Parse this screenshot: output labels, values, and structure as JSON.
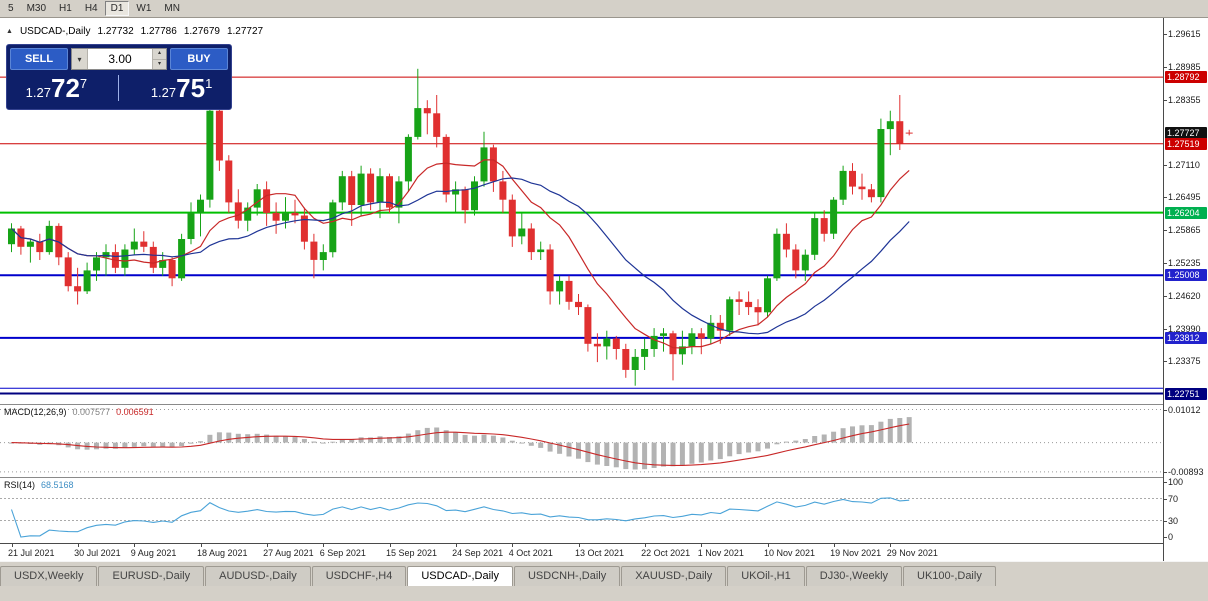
{
  "toolbar": {
    "timeframes": [
      "5",
      "M30",
      "H1",
      "H4",
      "D1",
      "W1",
      "MN"
    ],
    "active_timeframe": "D1"
  },
  "chart_header": {
    "collapse_icon": "▲",
    "symbol_period": "USDCAD-,Daily",
    "open": "1.27732",
    "high": "1.27786",
    "low": "1.27679",
    "close": "1.27727"
  },
  "trade_panel": {
    "sell_label": "SELL",
    "buy_label": "BUY",
    "volume": "3.00",
    "bid": {
      "prefix": "1.27",
      "big": "72",
      "sup": "7"
    },
    "ask": {
      "prefix": "1.27",
      "big": "75",
      "sup": "1"
    }
  },
  "price_axis": {
    "ticks": [
      "1.29615",
      "1.28985",
      "1.28355",
      "1.27110",
      "1.26495",
      "1.25865",
      "1.25235",
      "1.24620",
      "1.23990",
      "1.23375"
    ],
    "badges": [
      {
        "text": "1.28792",
        "color": "#cc0000"
      },
      {
        "text": "1.27727",
        "color": "#111111"
      },
      {
        "text": "1.27519",
        "color": "#cc0000"
      },
      {
        "text": "1.26204",
        "color": "#00b050"
      },
      {
        "text": "1.25008",
        "color": "#2222cc"
      },
      {
        "text": "1.23812",
        "color": "#2222cc"
      },
      {
        "text": "1.22751",
        "color": "#000080"
      }
    ]
  },
  "macd_panel": {
    "label": "MACD(12,26,9)",
    "main_value": "0.007577",
    "signal_value": "0.006591",
    "axis_labels": [
      "0.01012",
      "-0.00893"
    ]
  },
  "rsi_panel": {
    "label": "RSI(14)",
    "value": "68.5168",
    "axis_labels": [
      "100",
      "70",
      "30",
      "0"
    ]
  },
  "timeline": {
    "labels": [
      "21 Jul 2021",
      "30 Jul 2021",
      "9 Aug 2021",
      "18 Aug 2021",
      "27 Aug 2021",
      "6 Sep 2021",
      "15 Sep 2021",
      "24 Sep 2021",
      "4 Oct 2021",
      "13 Oct 2021",
      "22 Oct 2021",
      "1 Nov 2021",
      "10 Nov 2021",
      "19 Nov 2021",
      "29 Nov 2021"
    ],
    "label_indices": [
      0,
      7,
      13,
      20,
      27,
      33,
      40,
      47,
      53,
      60,
      67,
      73,
      80,
      87,
      93
    ]
  },
  "tabs": {
    "items": [
      "USDX,Weekly",
      "EURUSD-,Daily",
      "AUDUSD-,Daily",
      "USDCHF-,H4",
      "USDCAD-,Daily",
      "USDCNH-,Daily",
      "XAUUSD-,Daily",
      "UKOil-,H1",
      "DJ30-,Weekly",
      "UK100-,Daily"
    ],
    "active": "USDCAD-,Daily"
  },
  "chart_data": {
    "type": "candlestick",
    "symbol": "USDCAD-",
    "timeframe": "Daily",
    "price_range": [
      1.2255,
      1.2992
    ],
    "colors": {
      "up": "#17a317",
      "down": "#e03030",
      "ma_fast": "#c82828",
      "ma_slow": "#1f3596",
      "macd_hist": "#b3b3b3",
      "macd_signal": "#c82828",
      "rsi": "#4aa3d8"
    },
    "overlays": [
      {
        "name": "fast moving average",
        "type": "sma",
        "period": 10
      },
      {
        "name": "slow moving average",
        "type": "sma",
        "period": 20
      }
    ],
    "hlines": [
      {
        "price": 1.28792,
        "color": "#cc0000",
        "width": 1
      },
      {
        "price": 1.27519,
        "color": "#cc0000",
        "width": 1
      },
      {
        "price": 1.26204,
        "color": "#00c000",
        "width": 2
      },
      {
        "price": 1.25008,
        "color": "#0000cc",
        "width": 2
      },
      {
        "price": 1.23812,
        "color": "#0000cc",
        "width": 2
      },
      {
        "price": 1.2285,
        "color": "#0000cc",
        "width": 1
      },
      {
        "price": 1.22751,
        "color": "#000080",
        "width": 2
      }
    ],
    "macd": {
      "params": [
        12,
        26,
        9
      ],
      "range": [
        -0.0105,
        0.0115
      ],
      "grid_values": [
        0.01012,
        -0.00893
      ]
    },
    "rsi": {
      "period": 14,
      "levels": [
        70,
        30
      ],
      "range": [
        0,
        100
      ]
    },
    "candles": [
      [
        "2021-07-21",
        1.256,
        1.26,
        1.2545,
        1.259
      ],
      [
        "2021-07-22",
        1.259,
        1.2595,
        1.254,
        1.2555
      ],
      [
        "2021-07-23",
        1.2555,
        1.257,
        1.2525,
        1.2565
      ],
      [
        "2021-07-26",
        1.2565,
        1.258,
        1.253,
        1.2545
      ],
      [
        "2021-07-27",
        1.2545,
        1.2605,
        1.254,
        1.2595
      ],
      [
        "2021-07-28",
        1.2595,
        1.26,
        1.252,
        1.2535
      ],
      [
        "2021-07-29",
        1.2535,
        1.2545,
        1.247,
        1.248
      ],
      [
        "2021-07-30",
        1.248,
        1.2515,
        1.2445,
        1.247
      ],
      [
        "2021-08-02",
        1.247,
        1.2525,
        1.2465,
        1.251
      ],
      [
        "2021-08-03",
        1.251,
        1.2545,
        1.249,
        1.2535
      ],
      [
        "2021-08-04",
        1.2535,
        1.256,
        1.25,
        1.2545
      ],
      [
        "2021-08-05",
        1.2545,
        1.256,
        1.2505,
        1.2515
      ],
      [
        "2021-08-06",
        1.2515,
        1.256,
        1.25,
        1.255
      ],
      [
        "2021-08-09",
        1.255,
        1.259,
        1.254,
        1.2565
      ],
      [
        "2021-08-10",
        1.2565,
        1.2585,
        1.2545,
        1.2555
      ],
      [
        "2021-08-11",
        1.2555,
        1.2565,
        1.2505,
        1.2515
      ],
      [
        "2021-08-12",
        1.2515,
        1.2545,
        1.25,
        1.253
      ],
      [
        "2021-08-13",
        1.253,
        1.2535,
        1.248,
        1.2495
      ],
      [
        "2021-08-16",
        1.2495,
        1.258,
        1.249,
        1.257
      ],
      [
        "2021-08-17",
        1.257,
        1.264,
        1.256,
        1.262
      ],
      [
        "2021-08-18",
        1.262,
        1.2655,
        1.2575,
        1.2645
      ],
      [
        "2021-08-19",
        1.2645,
        1.283,
        1.263,
        1.2815
      ],
      [
        "2021-08-20",
        1.2815,
        1.284,
        1.27,
        1.272
      ],
      [
        "2021-08-23",
        1.272,
        1.273,
        1.262,
        1.264
      ],
      [
        "2021-08-24",
        1.264,
        1.2665,
        1.259,
        1.2605
      ],
      [
        "2021-08-25",
        1.2605,
        1.264,
        1.2585,
        1.263
      ],
      [
        "2021-08-26",
        1.263,
        1.2675,
        1.2615,
        1.2665
      ],
      [
        "2021-08-27",
        1.2665,
        1.268,
        1.2595,
        1.262
      ],
      [
        "2021-08-30",
        1.262,
        1.264,
        1.258,
        1.2605
      ],
      [
        "2021-08-31",
        1.2605,
        1.265,
        1.259,
        1.262
      ],
      [
        "2021-09-01",
        1.262,
        1.2645,
        1.26,
        1.2615
      ],
      [
        "2021-09-02",
        1.2615,
        1.263,
        1.255,
        1.2565
      ],
      [
        "2021-09-03",
        1.2565,
        1.258,
        1.2495,
        1.253
      ],
      [
        "2021-09-06",
        1.253,
        1.256,
        1.251,
        1.2545
      ],
      [
        "2021-09-07",
        1.2545,
        1.2645,
        1.2535,
        1.264
      ],
      [
        "2021-09-08",
        1.264,
        1.27,
        1.2625,
        1.269
      ],
      [
        "2021-09-09",
        1.269,
        1.27,
        1.2595,
        1.2635
      ],
      [
        "2021-09-10",
        1.2635,
        1.271,
        1.2615,
        1.2695
      ],
      [
        "2021-09-13",
        1.2695,
        1.2705,
        1.2625,
        1.264
      ],
      [
        "2021-09-14",
        1.264,
        1.2705,
        1.261,
        1.269
      ],
      [
        "2021-09-15",
        1.269,
        1.2695,
        1.262,
        1.263
      ],
      [
        "2021-09-16",
        1.263,
        1.269,
        1.26,
        1.268
      ],
      [
        "2021-09-17",
        1.268,
        1.277,
        1.266,
        1.2765
      ],
      [
        "2021-09-20",
        1.2765,
        1.2895,
        1.276,
        1.282
      ],
      [
        "2021-09-21",
        1.282,
        1.2835,
        1.277,
        1.281
      ],
      [
        "2021-09-22",
        1.281,
        1.2845,
        1.2745,
        1.2765
      ],
      [
        "2021-09-23",
        1.2765,
        1.277,
        1.264,
        1.2655
      ],
      [
        "2021-09-24",
        1.2655,
        1.268,
        1.262,
        1.2665
      ],
      [
        "2021-09-27",
        1.2665,
        1.267,
        1.26,
        1.2625
      ],
      [
        "2021-09-28",
        1.2625,
        1.269,
        1.2615,
        1.268
      ],
      [
        "2021-09-29",
        1.268,
        1.2775,
        1.267,
        1.2745
      ],
      [
        "2021-09-30",
        1.2745,
        1.275,
        1.266,
        1.268
      ],
      [
        "2021-10-01",
        1.268,
        1.27,
        1.262,
        1.2645
      ],
      [
        "2021-10-04",
        1.2645,
        1.2655,
        1.2555,
        1.2575
      ],
      [
        "2021-10-05",
        1.2575,
        1.262,
        1.256,
        1.259
      ],
      [
        "2021-10-06",
        1.259,
        1.26,
        1.253,
        1.2545
      ],
      [
        "2021-10-07",
        1.2545,
        1.2565,
        1.253,
        1.255
      ],
      [
        "2021-10-08",
        1.255,
        1.256,
        1.2445,
        1.247
      ],
      [
        "2021-10-11",
        1.247,
        1.25,
        1.2445,
        1.249
      ],
      [
        "2021-10-12",
        1.249,
        1.25,
        1.2435,
        1.245
      ],
      [
        "2021-10-13",
        1.245,
        1.2465,
        1.2425,
        1.244
      ],
      [
        "2021-10-14",
        1.244,
        1.2445,
        1.2355,
        1.237
      ],
      [
        "2021-10-15",
        1.237,
        1.239,
        1.2335,
        1.2365
      ],
      [
        "2021-10-18",
        1.2365,
        1.2395,
        1.234,
        1.238
      ],
      [
        "2021-10-19",
        1.238,
        1.2385,
        1.234,
        1.236
      ],
      [
        "2021-10-20",
        1.236,
        1.237,
        1.2305,
        1.232
      ],
      [
        "2021-10-21",
        1.232,
        1.236,
        1.229,
        1.2345
      ],
      [
        "2021-10-22",
        1.2345,
        1.238,
        1.232,
        1.236
      ],
      [
        "2021-10-25",
        1.236,
        1.24,
        1.2345,
        1.2385
      ],
      [
        "2021-10-26",
        1.2385,
        1.24,
        1.2355,
        1.239
      ],
      [
        "2021-10-27",
        1.239,
        1.2395,
        1.23,
        1.235
      ],
      [
        "2021-10-28",
        1.235,
        1.2395,
        1.233,
        1.2365
      ],
      [
        "2021-10-29",
        1.2365,
        1.24,
        1.235,
        1.239
      ],
      [
        "2021-11-01",
        1.239,
        1.24,
        1.235,
        1.238
      ],
      [
        "2021-11-02",
        1.238,
        1.2425,
        1.237,
        1.241
      ],
      [
        "2021-11-03",
        1.241,
        1.2425,
        1.237,
        1.2395
      ],
      [
        "2021-11-04",
        1.2395,
        1.246,
        1.2385,
        1.2455
      ],
      [
        "2021-11-05",
        1.2455,
        1.247,
        1.2425,
        1.245
      ],
      [
        "2021-11-08",
        1.245,
        1.247,
        1.2425,
        1.244
      ],
      [
        "2021-11-09",
        1.244,
        1.2455,
        1.2405,
        1.243
      ],
      [
        "2021-11-10",
        1.243,
        1.25,
        1.242,
        1.2495
      ],
      [
        "2021-11-11",
        1.2495,
        1.259,
        1.249,
        1.258
      ],
      [
        "2021-11-12",
        1.258,
        1.26,
        1.2535,
        1.255
      ],
      [
        "2021-11-15",
        1.255,
        1.256,
        1.2495,
        1.251
      ],
      [
        "2021-11-16",
        1.251,
        1.255,
        1.249,
        1.254
      ],
      [
        "2021-11-17",
        1.254,
        1.262,
        1.253,
        1.261
      ],
      [
        "2021-11-18",
        1.261,
        1.2625,
        1.2565,
        1.258
      ],
      [
        "2021-11-19",
        1.258,
        1.265,
        1.257,
        1.2645
      ],
      [
        "2021-11-22",
        1.2645,
        1.271,
        1.2635,
        1.27
      ],
      [
        "2021-11-23",
        1.27,
        1.2715,
        1.2655,
        1.267
      ],
      [
        "2021-11-24",
        1.267,
        1.2695,
        1.2645,
        1.2665
      ],
      [
        "2021-11-25",
        1.2665,
        1.2675,
        1.264,
        1.265
      ],
      [
        "2021-11-26",
        1.265,
        1.28,
        1.264,
        1.278
      ],
      [
        "2021-11-29",
        1.278,
        1.2815,
        1.273,
        1.2795
      ],
      [
        "2021-11-30",
        1.2795,
        1.2845,
        1.274,
        1.2752
      ],
      [
        "2021-12-01",
        1.27732,
        1.27786,
        1.27679,
        1.27727
      ]
    ]
  }
}
